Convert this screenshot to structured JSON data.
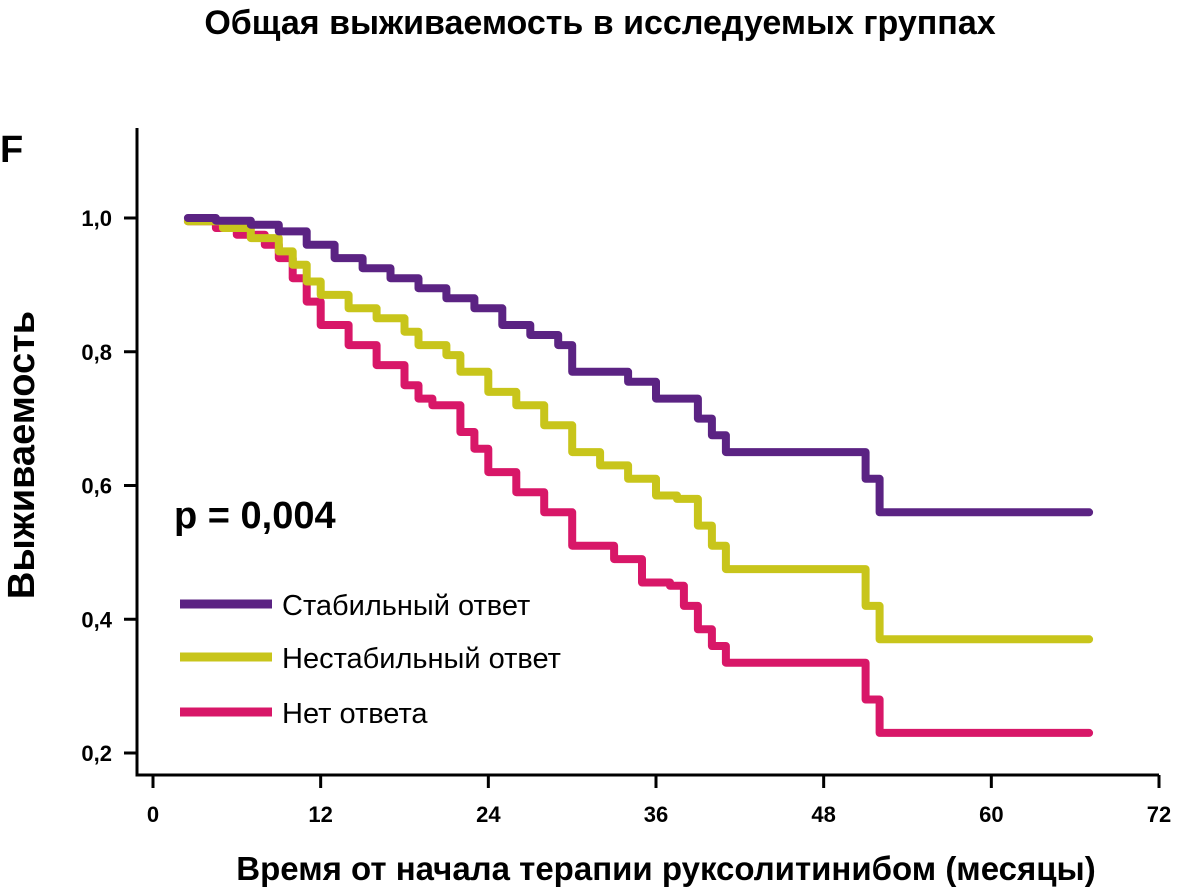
{
  "chart_data": {
    "type": "line",
    "title": "Общая выживаемость в исследуемых группах",
    "panel_label": "F",
    "xlabel": "Время от начала терапии руксолитинибом (месяцы)",
    "ylabel": "Выживаемость",
    "xlim": [
      0,
      72
    ],
    "ylim": [
      0.2,
      1.1
    ],
    "x_ticks": [
      0,
      12,
      24,
      36,
      48,
      60,
      72
    ],
    "x_tick_labels": [
      "0",
      "12",
      "24",
      "36",
      "48",
      "60",
      "72"
    ],
    "y_ticks": [
      1.0,
      0.8,
      0.6,
      0.4,
      0.2
    ],
    "y_tick_labels": [
      "1,0",
      "0,8",
      "0,6",
      "0,4",
      "0,2"
    ],
    "annotation": "p = 0,004",
    "legend_position": "lower-left",
    "series": [
      {
        "name": "Стабильный ответ",
        "color": "#5b2383",
        "x": [
          2.5,
          4.5,
          7,
          9,
          11,
          13,
          15,
          17,
          19,
          21,
          23,
          25,
          27,
          29,
          30,
          34,
          36,
          39,
          40,
          41,
          50,
          51,
          52,
          67
        ],
        "y": [
          1.0,
          0.996,
          0.99,
          0.98,
          0.96,
          0.94,
          0.925,
          0.91,
          0.895,
          0.88,
          0.865,
          0.84,
          0.825,
          0.81,
          0.77,
          0.755,
          0.73,
          0.7,
          0.675,
          0.65,
          0.65,
          0.61,
          0.56,
          0.56
        ]
      },
      {
        "name": "Нестабильный ответ",
        "color": "#c8c51b",
        "x": [
          2.5,
          5,
          7,
          9,
          10,
          11,
          12,
          14,
          16,
          18,
          19,
          21,
          22,
          24,
          26,
          28,
          30,
          32,
          34,
          36,
          37.5,
          39,
          40,
          41,
          50,
          51,
          52,
          67
        ],
        "y": [
          0.995,
          0.985,
          0.97,
          0.95,
          0.93,
          0.905,
          0.885,
          0.865,
          0.85,
          0.83,
          0.81,
          0.795,
          0.77,
          0.74,
          0.72,
          0.69,
          0.65,
          0.63,
          0.61,
          0.585,
          0.58,
          0.54,
          0.51,
          0.475,
          0.475,
          0.42,
          0.37,
          0.37
        ]
      },
      {
        "name": "Нет ответа",
        "color": "#d81768",
        "x": [
          2.5,
          4.5,
          6,
          8,
          9,
          10,
          11,
          12,
          14,
          16,
          18,
          19,
          20,
          22,
          23,
          24,
          26,
          28,
          30,
          33,
          35,
          37,
          38,
          39,
          40,
          41,
          50,
          51,
          52,
          67
        ],
        "y": [
          0.995,
          0.985,
          0.975,
          0.96,
          0.94,
          0.91,
          0.875,
          0.84,
          0.81,
          0.78,
          0.75,
          0.73,
          0.72,
          0.68,
          0.655,
          0.62,
          0.59,
          0.56,
          0.51,
          0.49,
          0.455,
          0.45,
          0.42,
          0.385,
          0.36,
          0.335,
          0.335,
          0.28,
          0.23,
          0.23
        ]
      }
    ]
  }
}
